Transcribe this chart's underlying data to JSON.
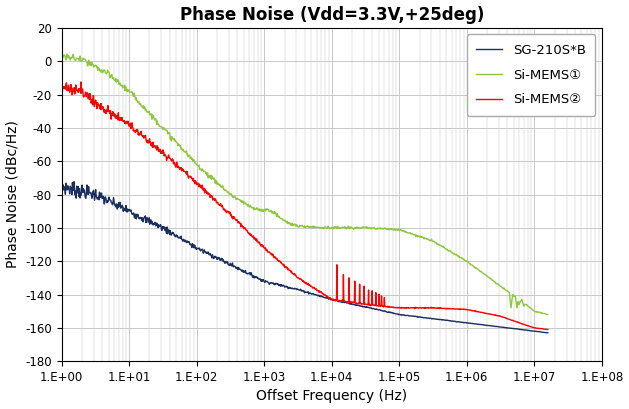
{
  "title": "Phase Noise (Vdd=3.3V,+25deg)",
  "xlabel": "Offset Frequency (Hz)",
  "ylabel": "Phase Noise (dBc/Hz)",
  "ylim": [
    -180,
    20
  ],
  "yticks": [
    -180,
    -160,
    -140,
    -120,
    -100,
    -80,
    -60,
    -40,
    -20,
    0,
    20
  ],
  "xlim_log": [
    1.0,
    100000000.0
  ],
  "background_color": "#ffffff",
  "grid_color": "#c8c8c8",
  "series": {
    "SG210": {
      "label": "SG-210S*B",
      "color": "#1a2f5e"
    },
    "MEMS1": {
      "label": "Si-MEMS①",
      "color": "#8dc63f"
    },
    "MEMS2": {
      "label": "Si-MEMS②",
      "color": "#ff0000"
    }
  }
}
